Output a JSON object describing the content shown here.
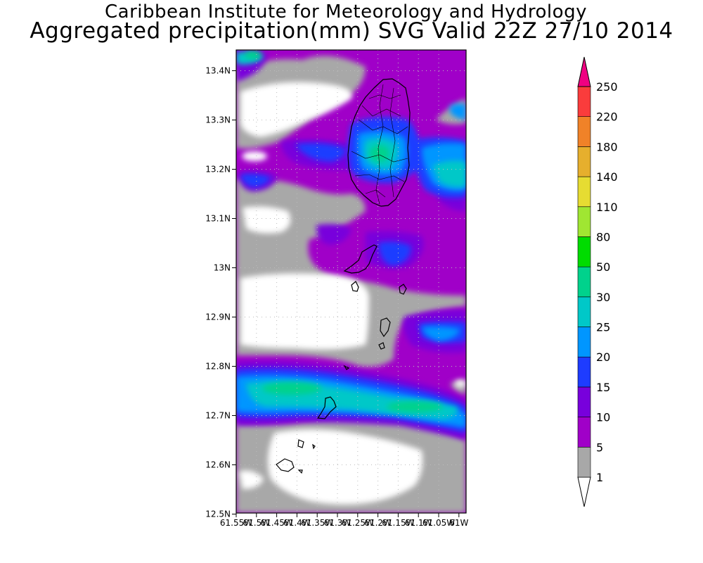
{
  "header": {
    "title_line1": "Caribbean Institute for Meteorology and Hydrology",
    "title_line2": "Aggregated precipitation(mm) SVG Valid 22Z 27/10 2014"
  },
  "map": {
    "lat_labels": [
      "13.4N",
      "13.3N",
      "13.2N",
      "13.1N",
      "13N",
      "12.9N",
      "12.8N",
      "12.7N",
      "12.6N",
      "12.5N"
    ],
    "lon_labels": [
      "61.55W",
      "61.5W",
      "61.45W",
      "61.4W",
      "61.35W",
      "61.3W",
      "61.25W",
      "61.2W",
      "61.15W",
      "61.1W",
      "61.05W",
      "61W"
    ],
    "lat_range": [
      12.5,
      13.44
    ],
    "lon_range": [
      -61.55,
      -61.0
    ]
  },
  "legend": {
    "levels": [
      "1",
      "5",
      "10",
      "15",
      "20",
      "25",
      "30",
      "50",
      "80",
      "110",
      "140",
      "180",
      "220",
      "250"
    ],
    "colors": [
      "#a8a8a8",
      "#a000c8",
      "#7800dc",
      "#1e3cff",
      "#0096ff",
      "#00c8c8",
      "#00d28c",
      "#00dc00",
      "#a0e632",
      "#e6dc32",
      "#e6af2d",
      "#f08228",
      "#fa3c3c",
      "#f00082"
    ]
  }
}
